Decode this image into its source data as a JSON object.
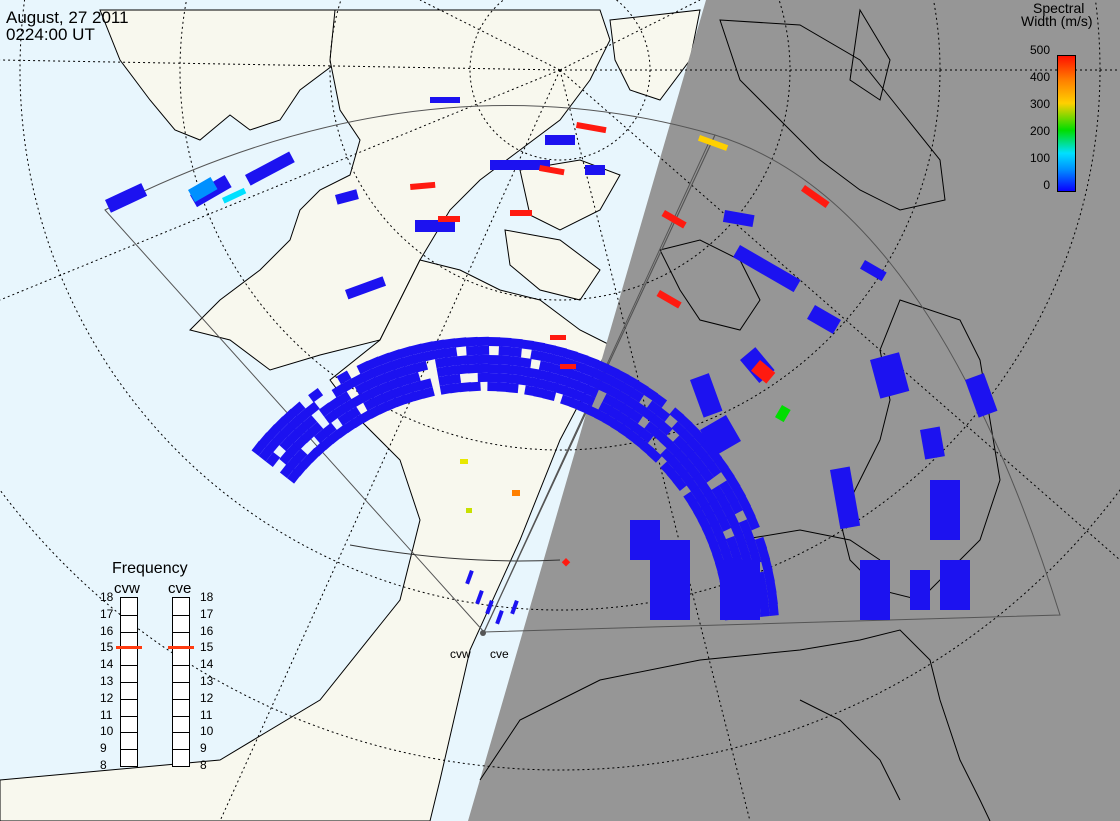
{
  "title": {
    "date": "August, 27 2011",
    "time": "0224:00 UT"
  },
  "colorbar": {
    "title_line1": "Spectral",
    "title_line2": "Width (m/s)",
    "tick_labels": [
      "500",
      "400",
      "300",
      "200",
      "100",
      "0"
    ],
    "min": 0,
    "max": 500,
    "colors": [
      "#0a00ff",
      "#0090ff",
      "#00e0ff",
      "#00dd00",
      "#ffd000",
      "#ff8000",
      "#ff1000"
    ]
  },
  "map_colors": {
    "ocean": "#e8f6fd",
    "land_day": "#f8f8ee",
    "night": "#969696",
    "outline": "#000000",
    "fov_line": "#555555",
    "low_width": "#1c12f0",
    "high_width": "#ff1a10"
  },
  "frequency_panel": {
    "title": "Frequency",
    "columns": [
      {
        "label": "cvw",
        "selected_mhz": 15
      },
      {
        "label": "cve",
        "selected_mhz": 15
      }
    ],
    "tick_labels": [
      "18",
      "17",
      "16",
      "15",
      "14",
      "13",
      "12",
      "11",
      "10",
      "9",
      "8"
    ],
    "selected_color": "#ff3b10"
  },
  "radars": [
    {
      "label": "cvw"
    },
    {
      "label": "cve"
    }
  ]
}
